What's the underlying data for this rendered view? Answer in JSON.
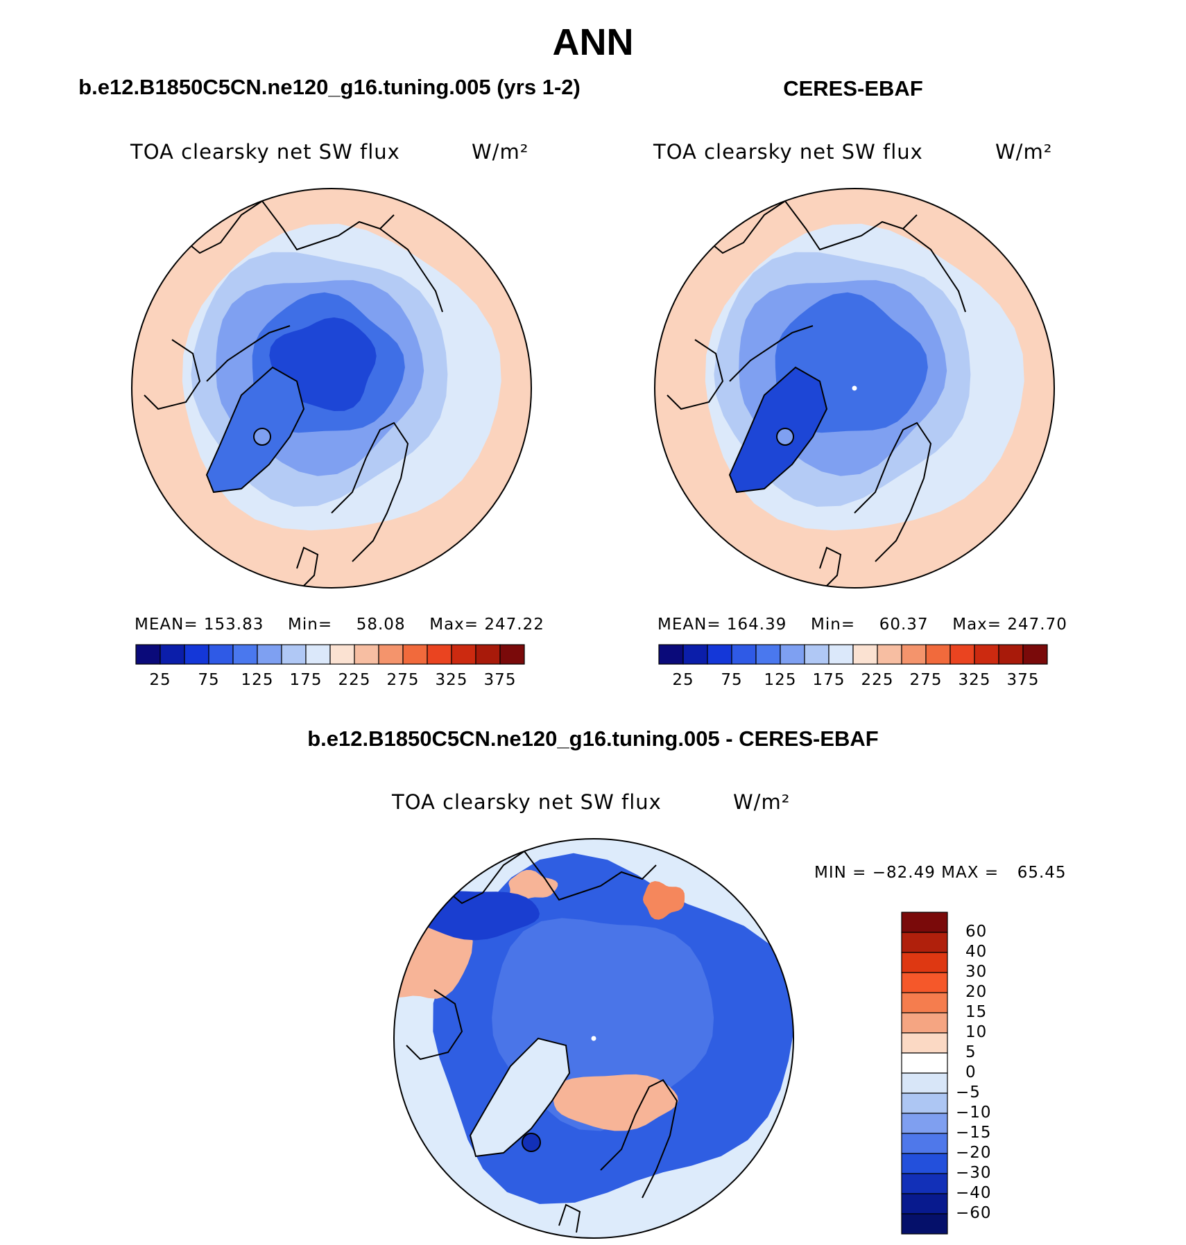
{
  "title": "ANN",
  "panels": [
    {
      "heading": "b.e12.B1850C5CN.ne120_g16.tuning.005 (yrs 1-2)",
      "variable": "TOA clearsky net SW flux",
      "units": "W/m²",
      "stats": {
        "mean_label": "MEAN=",
        "mean": "153.83",
        "min_label": "Min=",
        "min": "58.08",
        "max_label": "Max=",
        "max": "247.22"
      }
    },
    {
      "heading": "CERES-EBAF",
      "variable": "TOA clearsky net SW flux",
      "units": "W/m²",
      "stats": {
        "mean_label": "MEAN=",
        "mean": "164.39",
        "min_label": "Min=",
        "min": "60.37",
        "max_label": "Max=",
        "max": "247.70"
      }
    }
  ],
  "diff_panel": {
    "heading": "b.e12.B1850C5CN.ne120_g16.tuning.005 - CERES-EBAF",
    "variable": "TOA clearsky net SW flux",
    "units": "W/m²",
    "stats": {
      "min_label": "MIN =",
      "min": "−82.49",
      "max_label": "MAX =",
      "max": "65.45"
    }
  },
  "colorbar_levels": [
    "25",
    "75",
    "125",
    "175",
    "225",
    "275",
    "325",
    "375"
  ],
  "colorbar_colors": [
    "#0a0a7a",
    "#0b1eaa",
    "#1437d8",
    "#2f5ae6",
    "#4a78ee",
    "#7ea0f2",
    "#b0c8f5",
    "#dbe8fa",
    "#fbe2d2",
    "#f7bea2",
    "#f4946c",
    "#f16a3c",
    "#ea4420",
    "#cc2a10",
    "#a81a0a",
    "#7a0a0a"
  ],
  "diff_levels": [
    "60",
    "40",
    "30",
    "20",
    "15",
    "10",
    "5",
    "0",
    "−5",
    "−10",
    "−15",
    "−20",
    "−30",
    "−40",
    "−60"
  ],
  "diff_colors": [
    "#7a0a0a",
    "#b0200c",
    "#de3812",
    "#f5582a",
    "#f57d4e",
    "#f5a582",
    "#fbd9c4",
    "#ffffff",
    "#d8e6f8",
    "#adc6f3",
    "#7f9ff0",
    "#4f78ea",
    "#2350dc",
    "#1230b8",
    "#081a8e",
    "#05106a"
  ],
  "map_colors": {
    "ring_outer": "#fbd3bd",
    "ring_mid": "#dce9fa",
    "light_blue": "#b4cbf5",
    "mid_blue": "#7fa0f1",
    "blue": "#3f6fe6",
    "deep_blue": "#1d46d6",
    "diff_bg": "#cfe0f8",
    "diff_blue": "#2f5ee2",
    "diff_deep": "#1a3ed0",
    "diff_pos": "#f7b497",
    "diff_light": "#ddebfb"
  }
}
